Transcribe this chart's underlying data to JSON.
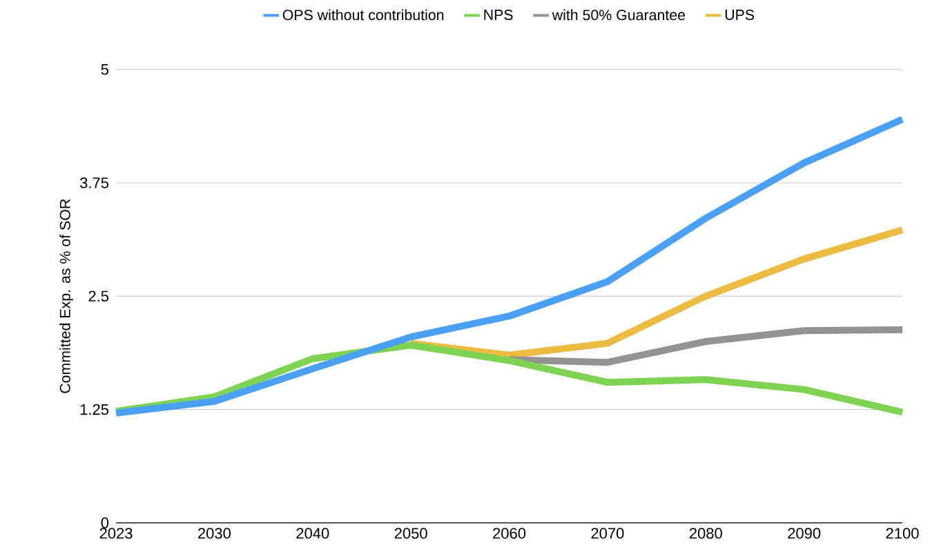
{
  "chart_data": {
    "type": "line",
    "ylabel": "Committed Exp. as % of SOR",
    "categories": [
      "2023",
      "2030",
      "2040",
      "2050",
      "2060",
      "2070",
      "2080",
      "2090",
      "2100"
    ],
    "series": [
      {
        "name": "OPS without contribution",
        "color": "#4aa0f5",
        "values": [
          1.21,
          1.34,
          1.7,
          2.05,
          2.28,
          2.66,
          3.36,
          3.97,
          4.45
        ]
      },
      {
        "name": "NPS",
        "color": "#7ed452",
        "values": [
          1.23,
          1.39,
          1.81,
          1.96,
          1.79,
          1.55,
          1.58,
          1.47,
          1.22
        ]
      },
      {
        "name": "with 50% Guarantee",
        "color": "#939393",
        "values": [
          null,
          null,
          null,
          null,
          1.8,
          1.77,
          2.0,
          2.12,
          2.13
        ]
      },
      {
        "name": "UPS",
        "color": "#ecbb42",
        "values": [
          null,
          null,
          null,
          1.98,
          1.85,
          1.98,
          2.5,
          2.91,
          3.23
        ]
      }
    ],
    "ylim": [
      0,
      5
    ],
    "yticks": [
      0,
      1.25,
      2.5,
      3.75,
      5
    ],
    "grid": "y",
    "legend": "top",
    "line_style": "solid"
  }
}
